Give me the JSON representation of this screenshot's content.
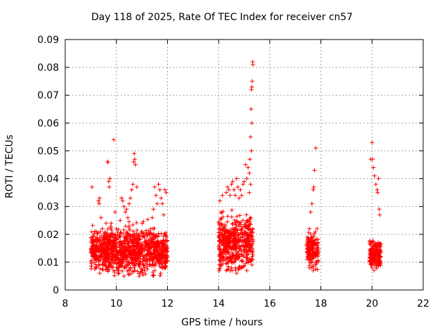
{
  "chart_data": {
    "type": "scatter",
    "title": "Day 118 of 2025, Rate Of TEC Index for receiver cn57",
    "xlabel": "GPS time / hours",
    "ylabel": "ROTI / TECUs",
    "xlim": [
      8,
      22
    ],
    "ylim": [
      0,
      0.09
    ],
    "x_ticks": [
      8,
      10,
      12,
      14,
      16,
      18,
      20,
      22
    ],
    "y_ticks": [
      0,
      0.01,
      0.02,
      0.03,
      0.04,
      0.05,
      0.06,
      0.07,
      0.08,
      0.09
    ],
    "x_tick_labels": [
      "8",
      "10",
      "12",
      "14",
      "16",
      "18",
      "20",
      "22"
    ],
    "y_tick_labels": [
      "0",
      "0.01",
      "0.02",
      "0.03",
      "0.04",
      "0.05",
      "0.06",
      "0.07",
      "0.08",
      "0.09"
    ],
    "grid": true,
    "marker": "+",
    "color": "#ff0000",
    "series": [
      {
        "name": "ROTI",
        "points": [
          [
            9.05,
            0.037
          ],
          [
            9.1,
            0.014
          ],
          [
            9.15,
            0.012
          ],
          [
            9.2,
            0.016
          ],
          [
            9.25,
            0.018
          ],
          [
            9.3,
            0.032
          ],
          [
            9.33,
            0.031
          ],
          [
            9.35,
            0.033
          ],
          [
            9.4,
            0.026
          ],
          [
            9.45,
            0.022
          ],
          [
            9.5,
            0.016
          ],
          [
            9.55,
            0.02
          ],
          [
            9.6,
            0.024
          ],
          [
            9.65,
            0.046
          ],
          [
            9.68,
            0.046
          ],
          [
            9.7,
            0.039
          ],
          [
            9.72,
            0.037
          ],
          [
            9.75,
            0.04
          ],
          [
            9.8,
            0.024
          ],
          [
            9.85,
            0.013
          ],
          [
            9.9,
            0.054
          ],
          [
            9.95,
            0.028
          ],
          [
            10.0,
            0.022
          ],
          [
            10.05,
            0.02
          ],
          [
            10.1,
            0.019
          ],
          [
            10.15,
            0.025
          ],
          [
            10.2,
            0.033
          ],
          [
            10.25,
            0.032
          ],
          [
            10.3,
            0.03
          ],
          [
            10.35,
            0.028
          ],
          [
            10.4,
            0.029
          ],
          [
            10.45,
            0.026
          ],
          [
            10.5,
            0.031
          ],
          [
            10.55,
            0.033
          ],
          [
            10.6,
            0.036
          ],
          [
            10.65,
            0.038
          ],
          [
            10.68,
            0.046
          ],
          [
            10.7,
            0.049
          ],
          [
            10.72,
            0.047
          ],
          [
            10.75,
            0.045
          ],
          [
            10.8,
            0.037
          ],
          [
            10.85,
            0.018
          ],
          [
            10.9,
            0.016
          ],
          [
            11.0,
            0.014
          ],
          [
            11.1,
            0.015
          ],
          [
            11.2,
            0.016
          ],
          [
            11.3,
            0.02
          ],
          [
            11.35,
            0.022
          ],
          [
            11.4,
            0.026
          ],
          [
            11.45,
            0.029
          ],
          [
            11.5,
            0.037
          ],
          [
            11.55,
            0.034
          ],
          [
            11.6,
            0.031
          ],
          [
            11.65,
            0.038
          ],
          [
            11.7,
            0.036
          ],
          [
            11.75,
            0.033
          ],
          [
            11.8,
            0.031
          ],
          [
            11.85,
            0.027
          ],
          [
            11.9,
            0.036
          ],
          [
            11.95,
            0.035
          ],
          [
            9.2,
            0.008
          ],
          [
            9.35,
            0.006
          ],
          [
            9.5,
            0.009
          ],
          [
            9.7,
            0.011
          ],
          [
            9.9,
            0.007
          ],
          [
            10.1,
            0.006
          ],
          [
            10.3,
            0.005
          ],
          [
            10.5,
            0.007
          ],
          [
            10.7,
            0.008
          ],
          [
            10.9,
            0.005
          ],
          [
            11.1,
            0.008
          ],
          [
            11.3,
            0.009
          ],
          [
            11.5,
            0.007
          ],
          [
            11.7,
            0.01
          ],
          [
            11.9,
            0.008
          ],
          [
            14.05,
            0.032
          ],
          [
            14.1,
            0.028
          ],
          [
            14.15,
            0.034
          ],
          [
            14.2,
            0.022
          ],
          [
            14.3,
            0.035
          ],
          [
            14.35,
            0.037
          ],
          [
            14.4,
            0.036
          ],
          [
            14.45,
            0.034
          ],
          [
            14.5,
            0.038
          ],
          [
            14.55,
            0.039
          ],
          [
            14.6,
            0.036
          ],
          [
            14.65,
            0.034
          ],
          [
            14.7,
            0.04
          ],
          [
            14.75,
            0.037
          ],
          [
            14.8,
            0.033
          ],
          [
            14.85,
            0.036
          ],
          [
            14.9,
            0.034
          ],
          [
            14.95,
            0.038
          ],
          [
            15.0,
            0.039
          ],
          [
            15.05,
            0.045
          ],
          [
            15.1,
            0.04
          ],
          [
            15.15,
            0.044
          ],
          [
            15.2,
            0.042
          ],
          [
            15.22,
            0.047
          ],
          [
            15.25,
            0.055
          ],
          [
            15.27,
            0.065
          ],
          [
            15.28,
            0.072
          ],
          [
            15.3,
            0.073
          ],
          [
            15.31,
            0.075
          ],
          [
            15.33,
            0.082
          ],
          [
            15.34,
            0.081
          ],
          [
            15.3,
            0.06
          ],
          [
            15.28,
            0.05
          ],
          [
            15.25,
            0.038
          ],
          [
            15.2,
            0.035
          ],
          [
            14.1,
            0.009
          ],
          [
            14.3,
            0.007
          ],
          [
            14.5,
            0.008
          ],
          [
            14.7,
            0.006
          ],
          [
            14.9,
            0.008
          ],
          [
            15.1,
            0.007
          ],
          [
            15.3,
            0.009
          ],
          [
            17.5,
            0.015
          ],
          [
            17.55,
            0.022
          ],
          [
            17.6,
            0.028
          ],
          [
            17.65,
            0.031
          ],
          [
            17.7,
            0.036
          ],
          [
            17.72,
            0.037
          ],
          [
            17.75,
            0.043
          ],
          [
            17.8,
            0.051
          ],
          [
            17.85,
            0.022
          ],
          [
            17.55,
            0.008
          ],
          [
            17.7,
            0.007
          ],
          [
            17.8,
            0.009
          ],
          [
            19.95,
            0.047
          ],
          [
            20.0,
            0.053
          ],
          [
            20.02,
            0.047
          ],
          [
            20.05,
            0.044
          ],
          [
            20.1,
            0.041
          ],
          [
            20.15,
            0.038
          ],
          [
            20.2,
            0.036
          ],
          [
            20.22,
            0.035
          ],
          [
            20.25,
            0.04
          ],
          [
            20.28,
            0.029
          ],
          [
            20.3,
            0.027
          ],
          [
            20.0,
            0.008
          ],
          [
            20.15,
            0.01
          ],
          [
            20.25,
            0.009
          ]
        ]
      }
    ],
    "dense_clusters": [
      {
        "x_range": [
          9.0,
          12.0
        ],
        "y_range": [
          0.005,
          0.028
        ]
      },
      {
        "x_range": [
          14.0,
          15.35
        ],
        "y_range": [
          0.006,
          0.033
        ]
      },
      {
        "x_range": [
          17.45,
          17.9
        ],
        "y_range": [
          0.007,
          0.025
        ]
      },
      {
        "x_range": [
          19.9,
          20.35
        ],
        "y_range": [
          0.007,
          0.022
        ]
      }
    ]
  }
}
